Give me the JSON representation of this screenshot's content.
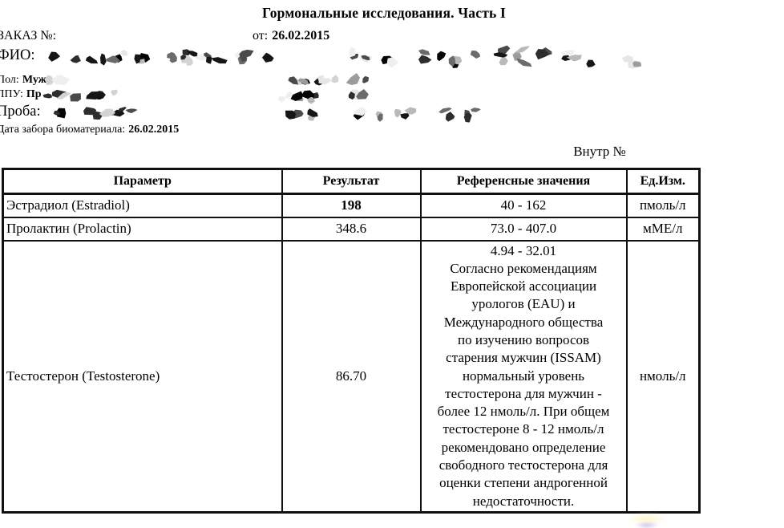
{
  "header": {
    "title": "Гормональные исследования. Часть I",
    "order_label": "ЗАКАЗ №:",
    "date_prefix": "от:",
    "date_value": "26.02.2015",
    "internal_number": "Внутр №"
  },
  "fields": {
    "fio": {
      "label": "ФИО:",
      "value": "",
      "redacted": true
    },
    "sex": {
      "label": "Пол:",
      "value": "Муж",
      "redacted": true
    },
    "lpu": {
      "label": "ЛПУ:",
      "value": "Пр",
      "redacted": true
    },
    "sample": {
      "label": "Проба:",
      "value": "",
      "redacted": true
    },
    "collection_date": {
      "label": "Дата забора биоматериала:",
      "value": "26.02.2015"
    }
  },
  "table": {
    "headers": [
      "Параметр",
      "Результат",
      "Референсные значения",
      "Ед.Изм."
    ],
    "rows": [
      {
        "parameter": "Эстрадиол (Estradiol)",
        "result": "198",
        "reference": "40 - 162",
        "unit": "пмоль/л"
      },
      {
        "parameter": "Пролактин (Prolactin)",
        "result": "348.6",
        "reference": "73.0 - 407.0",
        "unit": "мМЕ/л"
      },
      {
        "parameter": "Тестостерон (Testosterone)",
        "result": "86.70",
        "reference": "4.94 - 32.01\nСогласно рекомендациям\nЕвропейской ассоциации\nурологов (EAU) и\nМеждународного общества\nпо изучению вопросов\nстарения мужчин (ISSAM)\nнормальный уровень\nтестостерона для мужчин -\nболее 12 нмоль/л. При общем\nтестостероне 8 - 12 нмоль/л\nрекомендовано определение\nсвободного тестостерона для\nоценки степени андрогенной\nнедостаточности.",
        "unit": "нмоль/л"
      }
    ]
  }
}
